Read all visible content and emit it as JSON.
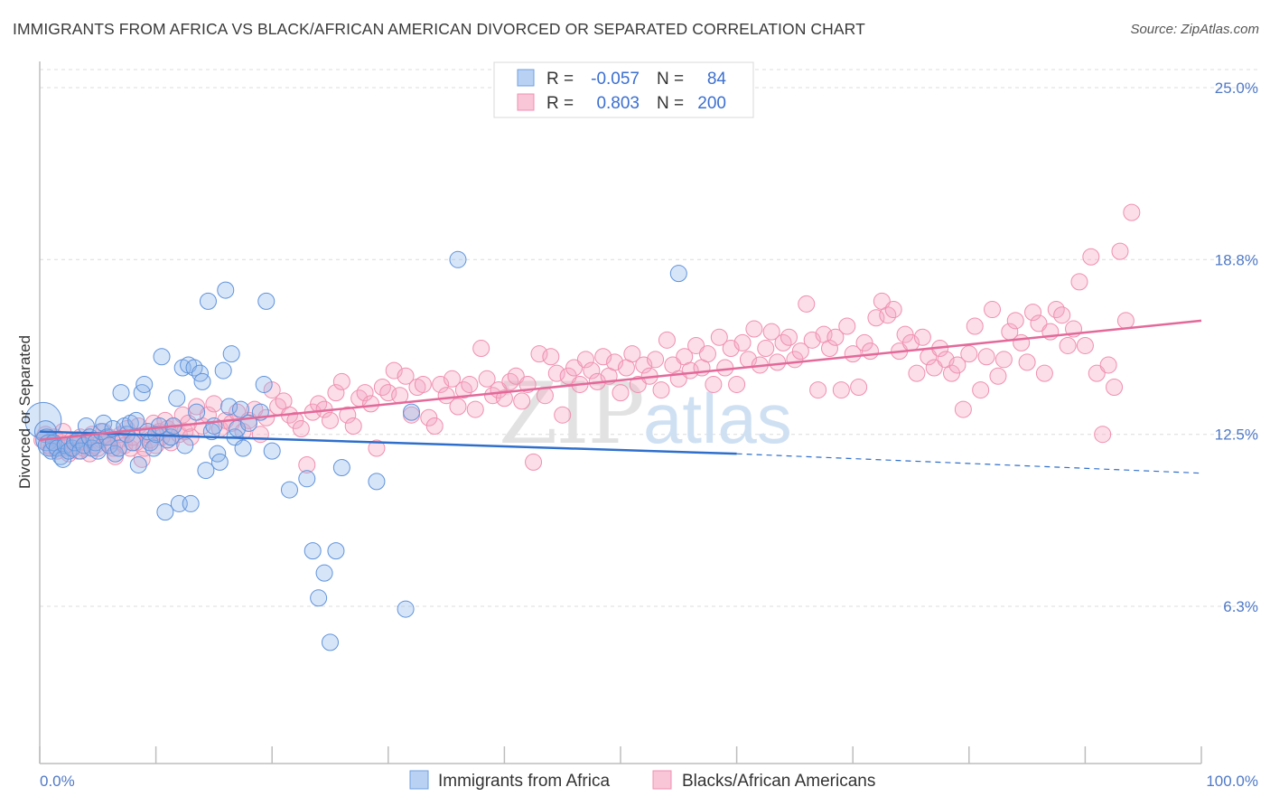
{
  "title": "IMMIGRANTS FROM AFRICA VS BLACK/AFRICAN AMERICAN DIVORCED OR SEPARATED CORRELATION CHART",
  "source": "Source: ZipAtlas.com",
  "colors": {
    "blue": "#6f9fe0",
    "pink": "#f08fb0",
    "blue_line": "#2f6fcb",
    "pink_line": "#e3699a",
    "tick_text": "#4f79c7"
  },
  "legend_top": [
    {
      "r_label": "R =",
      "r_value": "-0.057",
      "n_label": "N =",
      "n_value": "84"
    },
    {
      "r_label": "R =",
      "r_value": "0.803",
      "n_label": "N =",
      "n_value": "200"
    }
  ],
  "chart_data": {
    "type": "scatter",
    "xlabel": "",
    "ylabel": "Divorced or Separated",
    "xlim": [
      0,
      100
    ],
    "ylim": [
      0,
      26
    ],
    "x_tick_labels": [
      "0.0%",
      "100.0%"
    ],
    "y_ticks": [
      6.3,
      12.5,
      18.8,
      25.0
    ],
    "y_tick_labels": [
      "6.3%",
      "12.5%",
      "18.8%",
      "25.0%"
    ],
    "grid": true,
    "watermark": "ZIPatlas",
    "series": [
      {
        "name": "Immigrants from Africa",
        "color": "#6f9fe0",
        "trend": {
          "x": [
            0,
            60
          ],
          "y": [
            12.6,
            11.8
          ],
          "dashed_to": [
            100,
            11.1
          ]
        },
        "points": [
          [
            0.3,
            13.0
          ],
          [
            0.5,
            12.6
          ],
          [
            0.6,
            12.3
          ],
          [
            0.8,
            12.1
          ],
          [
            1.0,
            11.9
          ],
          [
            1.2,
            12.2
          ],
          [
            1.5,
            12.0
          ],
          [
            1.8,
            11.7
          ],
          [
            2.0,
            11.6
          ],
          [
            2.2,
            12.1
          ],
          [
            2.5,
            11.9
          ],
          [
            2.8,
            12.0
          ],
          [
            3.0,
            12.2
          ],
          [
            3.3,
            12.3
          ],
          [
            3.5,
            11.9
          ],
          [
            3.8,
            12.1
          ],
          [
            4.0,
            12.8
          ],
          [
            4.3,
            12.4
          ],
          [
            4.5,
            12.0
          ],
          [
            4.8,
            12.2
          ],
          [
            5.0,
            11.9
          ],
          [
            5.3,
            12.6
          ],
          [
            5.5,
            12.9
          ],
          [
            5.8,
            12.4
          ],
          [
            6.0,
            12.1
          ],
          [
            6.3,
            12.7
          ],
          [
            6.5,
            11.8
          ],
          [
            6.8,
            12.0
          ],
          [
            7.0,
            14.0
          ],
          [
            7.3,
            12.8
          ],
          [
            7.5,
            12.5
          ],
          [
            7.8,
            12.9
          ],
          [
            8.0,
            12.2
          ],
          [
            8.3,
            13.0
          ],
          [
            8.5,
            11.4
          ],
          [
            8.8,
            14.0
          ],
          [
            9.0,
            14.3
          ],
          [
            9.3,
            12.6
          ],
          [
            9.5,
            12.2
          ],
          [
            9.8,
            12.0
          ],
          [
            10.0,
            12.5
          ],
          [
            10.3,
            12.8
          ],
          [
            10.5,
            15.3
          ],
          [
            10.8,
            9.7
          ],
          [
            11.0,
            12.3
          ],
          [
            11.3,
            12.4
          ],
          [
            11.5,
            12.8
          ],
          [
            11.8,
            13.8
          ],
          [
            12.0,
            10.0
          ],
          [
            12.3,
            14.9
          ],
          [
            12.5,
            12.1
          ],
          [
            12.8,
            15.0
          ],
          [
            13.0,
            10.0
          ],
          [
            13.3,
            14.9
          ],
          [
            13.5,
            13.3
          ],
          [
            13.8,
            14.7
          ],
          [
            14.0,
            14.4
          ],
          [
            14.3,
            11.2
          ],
          [
            14.5,
            17.3
          ],
          [
            14.8,
            12.6
          ],
          [
            15.0,
            12.8
          ],
          [
            15.3,
            11.8
          ],
          [
            15.5,
            11.5
          ],
          [
            15.8,
            14.8
          ],
          [
            16.0,
            17.7
          ],
          [
            16.3,
            13.5
          ],
          [
            16.5,
            15.4
          ],
          [
            16.8,
            12.4
          ],
          [
            17.0,
            12.7
          ],
          [
            17.3,
            13.4
          ],
          [
            17.5,
            12.0
          ],
          [
            18.0,
            12.9
          ],
          [
            19.0,
            13.3
          ],
          [
            19.3,
            14.3
          ],
          [
            19.5,
            17.3
          ],
          [
            20.0,
            11.9
          ],
          [
            21.5,
            10.5
          ],
          [
            23.0,
            10.9
          ],
          [
            23.5,
            8.3
          ],
          [
            24.0,
            6.6
          ],
          [
            24.5,
            7.5
          ],
          [
            25.0,
            5.0
          ],
          [
            25.5,
            8.3
          ],
          [
            26.0,
            11.3
          ],
          [
            29.0,
            10.8
          ],
          [
            31.5,
            6.2
          ],
          [
            32.0,
            13.3
          ],
          [
            36.0,
            18.8
          ],
          [
            55.0,
            18.3
          ]
        ]
      },
      {
        "name": "Blacks/African Americans",
        "color": "#f08fb0",
        "trend": {
          "x": [
            0,
            100
          ],
          "y": [
            12.3,
            16.6
          ]
        },
        "points": [
          [
            0.2,
            12.3
          ],
          [
            0.5,
            12.5
          ],
          [
            0.8,
            12.1
          ],
          [
            1.0,
            12.0
          ],
          [
            1.3,
            12.4
          ],
          [
            1.5,
            11.9
          ],
          [
            1.8,
            12.2
          ],
          [
            2.0,
            12.6
          ],
          [
            2.3,
            12.0
          ],
          [
            2.5,
            11.8
          ],
          [
            2.8,
            12.3
          ],
          [
            3.0,
            12.1
          ],
          [
            3.3,
            11.9
          ],
          [
            3.5,
            12.4
          ],
          [
            3.8,
            12.0
          ],
          [
            4.0,
            12.2
          ],
          [
            4.3,
            11.8
          ],
          [
            4.5,
            12.5
          ],
          [
            4.8,
            12.1
          ],
          [
            5.0,
            12.0
          ],
          [
            5.3,
            12.3
          ],
          [
            5.5,
            12.6
          ],
          [
            5.8,
            12.2
          ],
          [
            6.0,
            12.4
          ],
          [
            6.3,
            12.0
          ],
          [
            6.5,
            11.7
          ],
          [
            6.8,
            12.3
          ],
          [
            7.0,
            12.5
          ],
          [
            7.3,
            12.1
          ],
          [
            7.5,
            12.7
          ],
          [
            7.8,
            12.0
          ],
          [
            8.0,
            12.4
          ],
          [
            8.3,
            12.2
          ],
          [
            8.5,
            12.8
          ],
          [
            8.8,
            11.6
          ],
          [
            9.0,
            12.0
          ],
          [
            9.3,
            12.5
          ],
          [
            9.5,
            12.3
          ],
          [
            9.8,
            12.9
          ],
          [
            10.0,
            12.1
          ],
          [
            10.3,
            12.6
          ],
          [
            10.5,
            12.4
          ],
          [
            10.8,
            13.0
          ],
          [
            11.0,
            12.7
          ],
          [
            11.3,
            12.2
          ],
          [
            11.5,
            12.8
          ],
          [
            12.0,
            12.5
          ],
          [
            12.3,
            13.2
          ],
          [
            12.5,
            12.6
          ],
          [
            12.8,
            12.9
          ],
          [
            13.0,
            12.4
          ],
          [
            13.5,
            13.5
          ],
          [
            14.0,
            12.8
          ],
          [
            14.5,
            13.2
          ],
          [
            15.0,
            13.6
          ],
          [
            15.5,
            12.7
          ],
          [
            16.0,
            13.0
          ],
          [
            16.5,
            12.9
          ],
          [
            17.0,
            13.3
          ],
          [
            17.5,
            12.6
          ],
          [
            18.0,
            13.0
          ],
          [
            18.5,
            13.4
          ],
          [
            19.0,
            12.5
          ],
          [
            19.5,
            13.1
          ],
          [
            20.0,
            14.1
          ],
          [
            20.5,
            13.5
          ],
          [
            21.0,
            13.7
          ],
          [
            21.5,
            13.2
          ],
          [
            22.0,
            13.0
          ],
          [
            22.5,
            12.7
          ],
          [
            23.0,
            11.4
          ],
          [
            23.5,
            13.3
          ],
          [
            24.0,
            13.6
          ],
          [
            24.5,
            13.4
          ],
          [
            25.0,
            13.0
          ],
          [
            25.5,
            14.0
          ],
          [
            26.0,
            14.4
          ],
          [
            26.5,
            13.2
          ],
          [
            27.0,
            12.8
          ],
          [
            27.5,
            13.8
          ],
          [
            28.0,
            14.0
          ],
          [
            28.5,
            13.6
          ],
          [
            29.0,
            12.0
          ],
          [
            29.5,
            14.2
          ],
          [
            30.0,
            14.0
          ],
          [
            30.5,
            14.8
          ],
          [
            31.0,
            13.9
          ],
          [
            31.5,
            14.6
          ],
          [
            32.0,
            13.2
          ],
          [
            32.5,
            14.2
          ],
          [
            33.0,
            14.3
          ],
          [
            33.5,
            13.1
          ],
          [
            34.0,
            12.8
          ],
          [
            34.5,
            14.3
          ],
          [
            35.0,
            13.9
          ],
          [
            35.5,
            14.5
          ],
          [
            36.0,
            13.5
          ],
          [
            36.5,
            14.1
          ],
          [
            37.0,
            14.3
          ],
          [
            37.5,
            13.4
          ],
          [
            38.0,
            15.6
          ],
          [
            38.5,
            14.5
          ],
          [
            39.0,
            13.9
          ],
          [
            39.5,
            14.1
          ],
          [
            40.0,
            13.8
          ],
          [
            40.5,
            14.4
          ],
          [
            41.0,
            14.6
          ],
          [
            41.5,
            13.7
          ],
          [
            42.0,
            14.3
          ],
          [
            42.5,
            11.5
          ],
          [
            43.0,
            15.4
          ],
          [
            43.5,
            13.9
          ],
          [
            44.0,
            15.3
          ],
          [
            44.5,
            14.7
          ],
          [
            45.0,
            13.2
          ],
          [
            45.5,
            14.6
          ],
          [
            46.0,
            14.9
          ],
          [
            46.5,
            14.3
          ],
          [
            47.0,
            15.2
          ],
          [
            47.5,
            14.8
          ],
          [
            48.0,
            14.4
          ],
          [
            48.5,
            15.3
          ],
          [
            49.0,
            14.6
          ],
          [
            49.5,
            15.1
          ],
          [
            50.0,
            14.0
          ],
          [
            50.5,
            14.9
          ],
          [
            51.0,
            15.4
          ],
          [
            51.5,
            14.3
          ],
          [
            52.0,
            15.0
          ],
          [
            52.5,
            14.6
          ],
          [
            53.0,
            15.2
          ],
          [
            53.5,
            14.1
          ],
          [
            54.0,
            15.9
          ],
          [
            54.5,
            15.0
          ],
          [
            55.0,
            14.5
          ],
          [
            55.5,
            15.3
          ],
          [
            56.0,
            14.8
          ],
          [
            56.5,
            15.7
          ],
          [
            57.0,
            14.9
          ],
          [
            57.5,
            15.4
          ],
          [
            58.0,
            14.3
          ],
          [
            58.5,
            16.0
          ],
          [
            59.0,
            14.9
          ],
          [
            59.5,
            15.6
          ],
          [
            60.0,
            14.3
          ],
          [
            60.5,
            15.8
          ],
          [
            61.0,
            15.2
          ],
          [
            61.5,
            16.3
          ],
          [
            62.0,
            15.0
          ],
          [
            62.5,
            15.6
          ],
          [
            63.0,
            16.2
          ],
          [
            63.5,
            15.1
          ],
          [
            64.0,
            15.8
          ],
          [
            64.5,
            16.0
          ],
          [
            65.0,
            15.2
          ],
          [
            65.5,
            15.5
          ],
          [
            66.0,
            17.2
          ],
          [
            66.5,
            15.9
          ],
          [
            67.0,
            14.1
          ],
          [
            67.5,
            16.1
          ],
          [
            68.0,
            15.6
          ],
          [
            68.5,
            16.0
          ],
          [
            69.0,
            14.1
          ],
          [
            69.5,
            16.4
          ],
          [
            70.0,
            15.4
          ],
          [
            70.5,
            14.2
          ],
          [
            71.0,
            15.8
          ],
          [
            71.5,
            15.5
          ],
          [
            72.0,
            16.7
          ],
          [
            72.5,
            17.3
          ],
          [
            73.0,
            16.8
          ],
          [
            73.5,
            17.0
          ],
          [
            74.0,
            15.5
          ],
          [
            74.5,
            16.1
          ],
          [
            75.0,
            15.8
          ],
          [
            75.5,
            14.7
          ],
          [
            76.0,
            16.0
          ],
          [
            76.5,
            15.3
          ],
          [
            77.0,
            14.9
          ],
          [
            77.5,
            15.6
          ],
          [
            78.0,
            15.2
          ],
          [
            78.5,
            14.7
          ],
          [
            79.0,
            15.0
          ],
          [
            79.5,
            13.4
          ],
          [
            80.0,
            15.4
          ],
          [
            80.5,
            16.4
          ],
          [
            81.0,
            14.1
          ],
          [
            81.5,
            15.3
          ],
          [
            82.0,
            17.0
          ],
          [
            82.5,
            14.6
          ],
          [
            83.0,
            15.2
          ],
          [
            83.5,
            16.2
          ],
          [
            84.0,
            16.6
          ],
          [
            84.5,
            15.8
          ],
          [
            85.0,
            15.1
          ],
          [
            85.5,
            16.9
          ],
          [
            86.0,
            16.5
          ],
          [
            86.5,
            14.7
          ],
          [
            87.0,
            16.2
          ],
          [
            87.5,
            17.0
          ],
          [
            88.0,
            16.8
          ],
          [
            88.5,
            15.7
          ],
          [
            89.0,
            16.3
          ],
          [
            89.5,
            18.0
          ],
          [
            90.0,
            15.7
          ],
          [
            90.5,
            18.9
          ],
          [
            91.0,
            14.7
          ],
          [
            91.5,
            12.5
          ],
          [
            92.0,
            15.0
          ],
          [
            92.5,
            14.2
          ],
          [
            93.0,
            19.1
          ],
          [
            93.5,
            16.6
          ],
          [
            94.0,
            20.5
          ]
        ]
      }
    ]
  },
  "legend_bottom": [
    "Immigrants from Africa",
    "Blacks/African Americans"
  ]
}
